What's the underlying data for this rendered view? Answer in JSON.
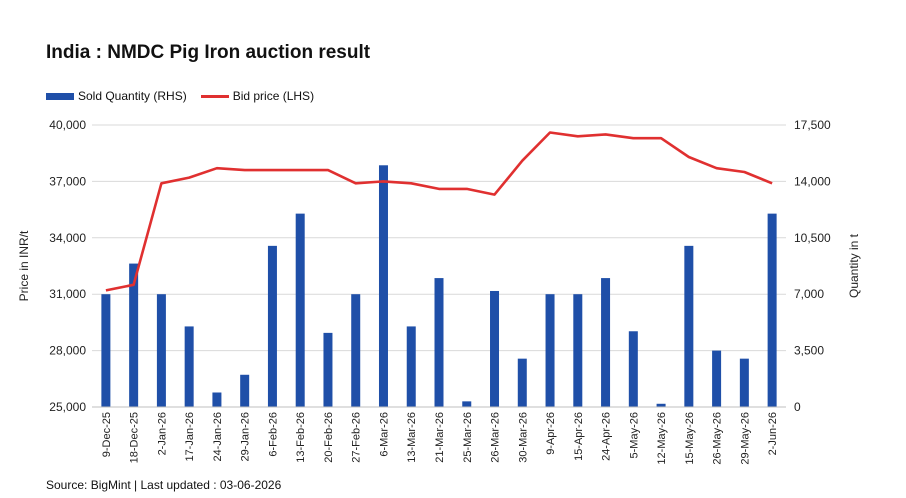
{
  "chart_data": {
    "type": "bar+line",
    "title": "India : NMDC Pig Iron auction result",
    "categories": [
      "9-Dec-25",
      "18-Dec-25",
      "2-Jan-26",
      "17-Jan-26",
      "24-Jan-26",
      "29-Jan-26",
      "6-Feb-26",
      "13-Feb-26",
      "20-Feb-26",
      "27-Feb-26",
      "6-Mar-26",
      "13-Mar-26",
      "21-Mar-26",
      "25-Mar-26",
      "26-Mar-26",
      "30-Mar-26",
      "9-Apr-26",
      "15-Apr-26",
      "24-Apr-26",
      "5-May-26",
      "12-May-26",
      "15-May-26",
      "26-May-26",
      "29-May-26",
      "2-Jun-26"
    ],
    "series": [
      {
        "name": "Sold Quantity (RHS)",
        "type": "bar",
        "axis": "right",
        "color": "#1f4fa8",
        "values": [
          7000,
          8900,
          7000,
          5000,
          900,
          2000,
          10000,
          12000,
          4600,
          7000,
          15000,
          5000,
          8000,
          350,
          7200,
          3000,
          7000,
          7000,
          8000,
          4700,
          200,
          10000,
          3500,
          3000,
          12000
        ]
      },
      {
        "name": "Bid price (LHS)",
        "type": "line",
        "axis": "left",
        "color": "#e03030",
        "values": [
          31200,
          31500,
          36900,
          37200,
          37700,
          37600,
          37600,
          37600,
          37600,
          36900,
          37000,
          36900,
          36600,
          36600,
          36300,
          38100,
          39600,
          39400,
          39500,
          39300,
          39300,
          38300,
          37700,
          37500,
          36900
        ]
      }
    ],
    "ylabel_left": "Price in INR/t",
    "ylabel_right": "Quantity in t",
    "ylim_left": [
      25000,
      40000
    ],
    "ylim_right": [
      0,
      17500
    ],
    "yticks_left": [
      "25,000",
      "28,000",
      "31,000",
      "34,000",
      "37,000",
      "40,000"
    ],
    "yticks_right": [
      "0",
      "3,500",
      "7,000",
      "10,500",
      "14,000",
      "17,500"
    ],
    "yticks_left_values": [
      25000,
      28000,
      31000,
      34000,
      37000,
      40000
    ],
    "grid": true,
    "legend_position": "top-left"
  },
  "legend": {
    "bar_label": "Sold Quantity (RHS)",
    "line_label": "Bid price (LHS)"
  },
  "footer": "Source: BigMint | Last updated : 03-06-2026"
}
